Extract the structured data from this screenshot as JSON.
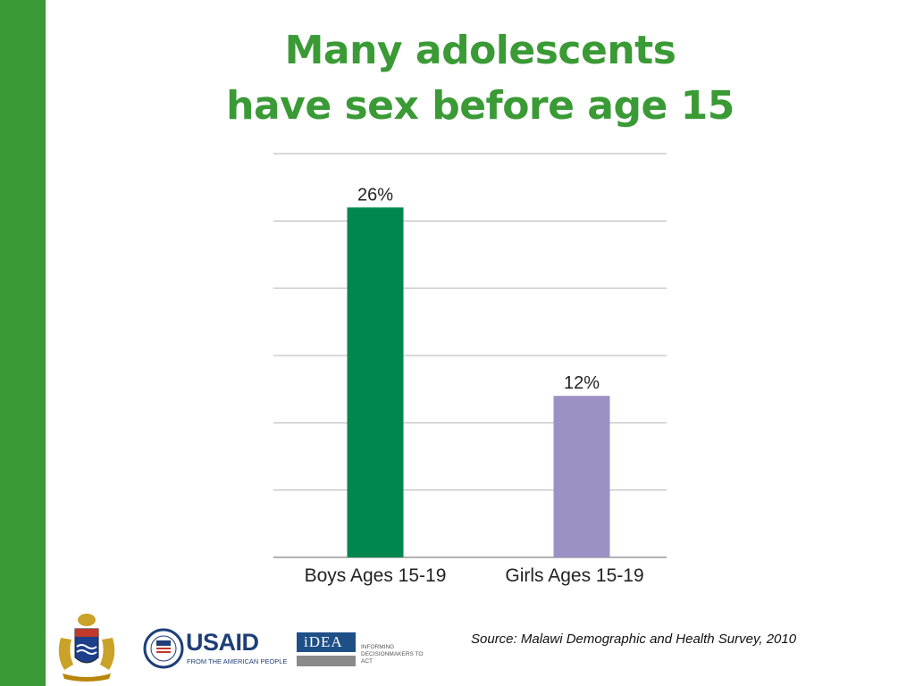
{
  "slide": {
    "title_line1": "Many adolescents",
    "title_line2": "have sex before age 15",
    "source": "Source: Malawi Demographic and Health Survey, 2010",
    "accent_color": "#3a9a35"
  },
  "logos": {
    "crest_icon": "malawi-coat-of-arms-icon",
    "usaid_name": "USAID",
    "usaid_tagline": "FROM THE AMERICAN PEOPLE",
    "idea_name": "iDEA",
    "idea_tagline": "INFORMING DECISIONMAKERS TO ACT"
  },
  "chart_data": {
    "type": "bar",
    "categories": [
      "Boys Ages 15-19",
      "Girls Ages 15-19"
    ],
    "values": [
      26,
      12
    ],
    "data_labels": [
      "26%",
      "12%"
    ],
    "colors": [
      "#00874d",
      "#9c90c4"
    ],
    "ylim": [
      0,
      30
    ],
    "grid": true,
    "title": "",
    "xlabel": "",
    "ylabel": ""
  }
}
